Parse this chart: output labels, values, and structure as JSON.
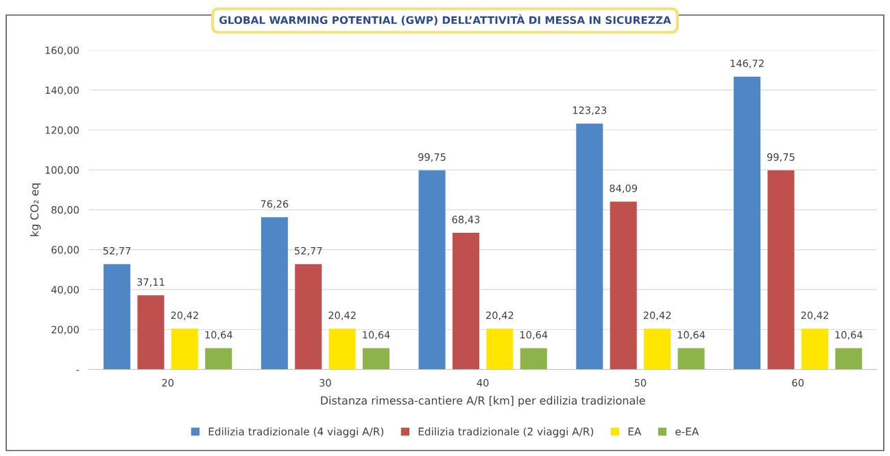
{
  "chart_data": {
    "type": "bar",
    "title": "GLOBAL WARMING POTENTIAL (GWP) DELL’ATTIVITÀ DI MESSA IN SICUREZZA",
    "xlabel": "Distanza rimessa-cantiere A/R [km] per edilizia tradizionale",
    "ylabel": "kg CO₂ eq",
    "categories": [
      "20",
      "30",
      "40",
      "50",
      "60"
    ],
    "series": [
      {
        "name": "Edilizia tradizionale (4 viaggi A/R)",
        "color": "#4f86c6",
        "values": [
          52.77,
          76.26,
          99.75,
          123.23,
          146.72
        ],
        "value_labels": [
          "52,77",
          "76,26",
          "99,75",
          "123,23",
          "146,72"
        ]
      },
      {
        "name": "Edilizia tradizionale (2 viaggi A/R)",
        "color": "#c0504d",
        "values": [
          37.11,
          52.77,
          68.43,
          84.09,
          99.75
        ],
        "value_labels": [
          "37,11",
          "52,77",
          "68,43",
          "84,09",
          "99,75"
        ]
      },
      {
        "name": "EA",
        "color": "#ffe600",
        "values": [
          20.42,
          20.42,
          20.42,
          20.42,
          20.42
        ],
        "value_labels": [
          "20,42",
          "20,42",
          "20,42",
          "20,42",
          "20,42"
        ]
      },
      {
        "name": "e-EA",
        "color": "#8cb44a",
        "values": [
          10.64,
          10.64,
          10.64,
          10.64,
          10.64
        ],
        "value_labels": [
          "10,64",
          "10,64",
          "10,64",
          "10,64",
          "10,64"
        ]
      }
    ],
    "ylim": [
      0,
      160
    ],
    "yticks": [
      {
        "value": 0,
        "label": "-"
      },
      {
        "value": 20,
        "label": "20,00"
      },
      {
        "value": 40,
        "label": "40,00"
      },
      {
        "value": 60,
        "label": "60,00"
      },
      {
        "value": 80,
        "label": "80,00"
      },
      {
        "value": 100,
        "label": "100,00"
      },
      {
        "value": 120,
        "label": "120,00"
      },
      {
        "value": 140,
        "label": "140,00"
      },
      {
        "value": 160,
        "label": "160,00"
      }
    ],
    "grid": "y",
    "legend": "bottom"
  }
}
